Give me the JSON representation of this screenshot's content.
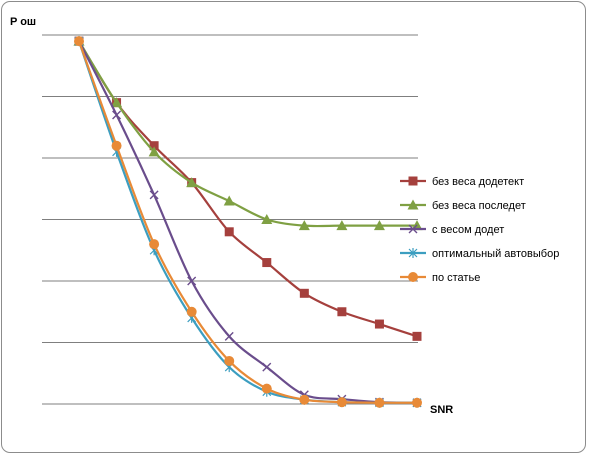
{
  "chart_data": {
    "type": "line",
    "title": "",
    "ylabel": "P ош",
    "xlabel": "SNR",
    "x": [
      1,
      2,
      3,
      4,
      5,
      6,
      7,
      8,
      9,
      10
    ],
    "ylim": [
      0,
      6
    ],
    "grid": true,
    "legend_position": "right",
    "series": [
      {
        "name": "без веса додетект",
        "color": "#a5403d",
        "marker": "square",
        "values": [
          5.9,
          4.9,
          4.2,
          3.6,
          2.8,
          2.3,
          1.8,
          1.5,
          1.3,
          1.1
        ]
      },
      {
        "name": "без веса последет",
        "color": "#7fa043",
        "marker": "triangle",
        "values": [
          5.9,
          4.9,
          4.1,
          3.6,
          3.3,
          3.0,
          2.9,
          2.9,
          2.9,
          2.9
        ]
      },
      {
        "name": "с весом додет",
        "color": "#6a4d8c",
        "marker": "x",
        "values": [
          5.9,
          4.7,
          3.4,
          2.0,
          1.1,
          0.6,
          0.15,
          0.08,
          0.03,
          0.02
        ]
      },
      {
        "name": "оптимальный автовыбор",
        "color": "#3c9ec0",
        "marker": "star",
        "values": [
          5.9,
          4.1,
          2.5,
          1.4,
          0.6,
          0.2,
          0.07,
          0.03,
          0.02,
          0.02
        ]
      },
      {
        "name": "по статье",
        "color": "#e88a37",
        "marker": "circle",
        "values": [
          5.9,
          4.2,
          2.6,
          1.5,
          0.7,
          0.25,
          0.07,
          0.03,
          0.02,
          0.02
        ]
      }
    ]
  }
}
